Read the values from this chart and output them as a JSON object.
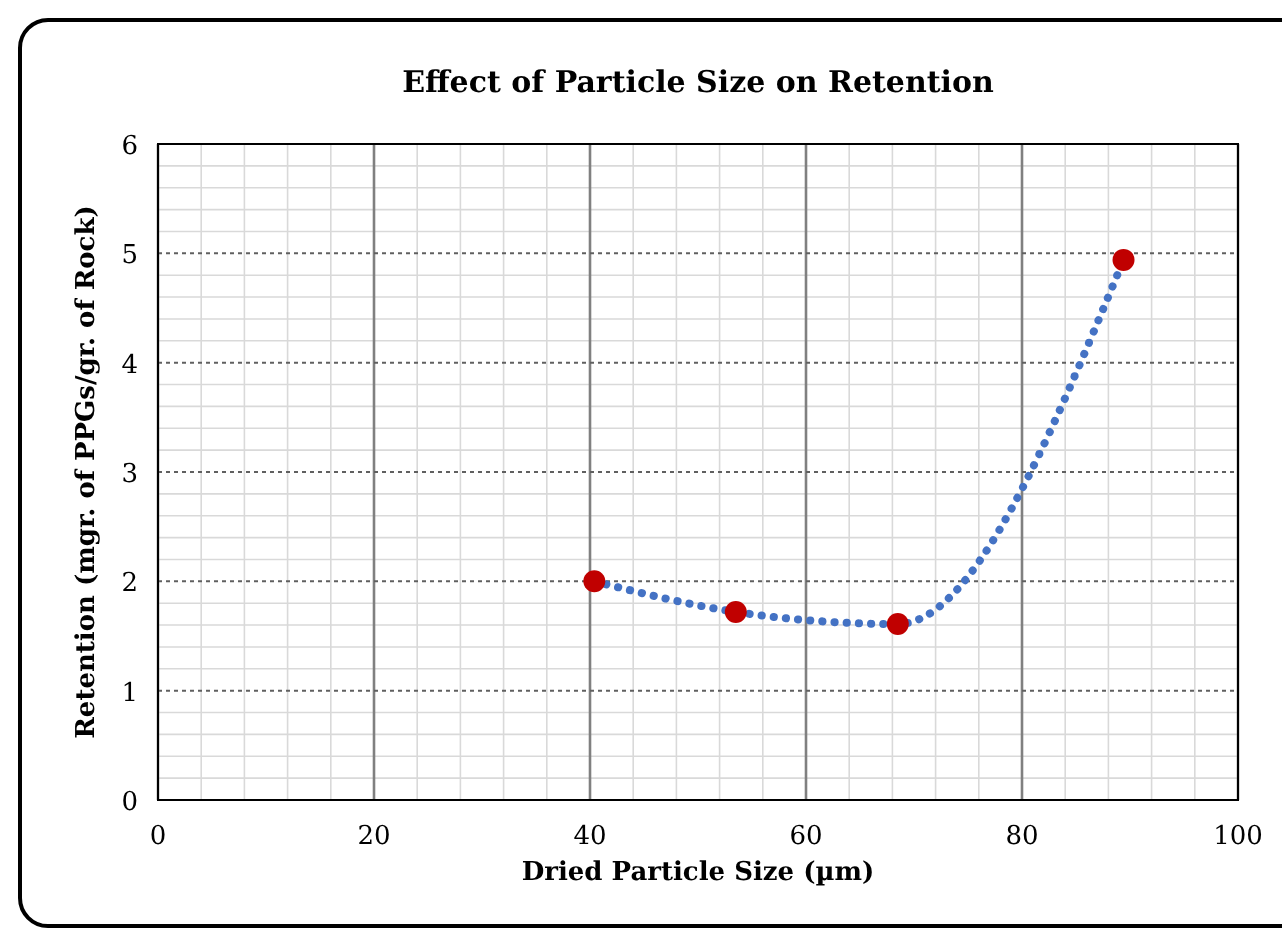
{
  "chart_data": {
    "type": "scatter",
    "title": "Effect of Particle Size on Retention",
    "xlabel": "Dried Particle Size (µm)",
    "ylabel": "Retention (mgr. of PPGs/gr. of Rock)",
    "x": [
      40.4,
      53.5,
      68.5,
      89.4
    ],
    "series": [
      {
        "type": "line",
        "color": "#4472c4",
        "line_style": "dotted",
        "values": [
          2.0,
          1.72,
          1.61,
          4.94
        ]
      },
      {
        "type": "scatter",
        "color": "#c00000",
        "marker": "circle",
        "values": [
          2.0,
          1.72,
          1.61,
          4.94
        ]
      }
    ],
    "xlim": [
      0,
      100
    ],
    "xticks": [
      0,
      20,
      40,
      60,
      80,
      100
    ],
    "ylim": [
      0,
      6
    ],
    "yticks": [
      0,
      1,
      2,
      3,
      4,
      5,
      6
    ],
    "grid": true
  }
}
